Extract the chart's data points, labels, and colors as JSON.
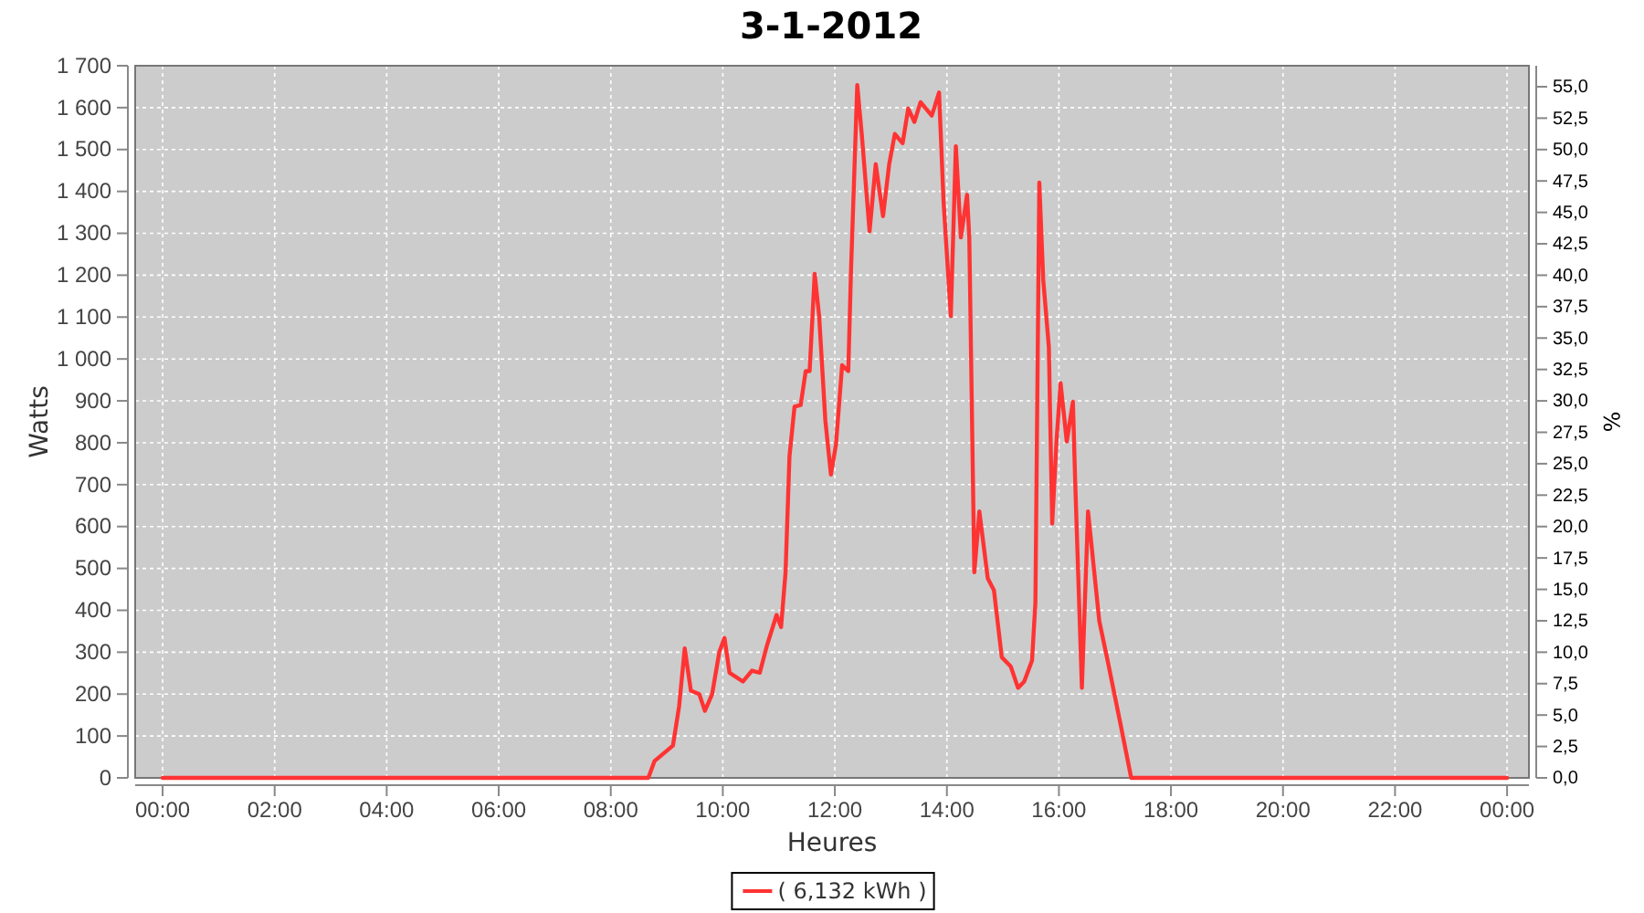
{
  "chart_data": {
    "type": "line",
    "title": "3-1-2012",
    "xlabel": "Heures",
    "ylabel": "Watts",
    "y2label": "%",
    "xlim": [
      -0.49,
      24.39
    ],
    "xticks": [
      {
        "value": 0,
        "label": "00:00"
      },
      {
        "value": 2,
        "label": "02:00"
      },
      {
        "value": 4,
        "label": "04:00"
      },
      {
        "value": 6,
        "label": "06:00"
      },
      {
        "value": 8,
        "label": "08:00"
      },
      {
        "value": 10,
        "label": "10:00"
      },
      {
        "value": 12,
        "label": "12:00"
      },
      {
        "value": 14,
        "label": "14:00"
      },
      {
        "value": 16,
        "label": "16:00"
      },
      {
        "value": 18,
        "label": "18:00"
      },
      {
        "value": 20,
        "label": "20:00"
      },
      {
        "value": 22,
        "label": "22:00"
      },
      {
        "value": 24,
        "label": "00:00"
      }
    ],
    "ylim": [
      0,
      1700
    ],
    "yticks": [
      0,
      100,
      200,
      300,
      400,
      500,
      600,
      700,
      800,
      900,
      {
        "value": 1000,
        "label": "1 000"
      },
      {
        "value": 1100,
        "label": "1 100"
      },
      {
        "value": 1200,
        "label": "1 200"
      },
      {
        "value": 1300,
        "label": "1 300"
      },
      {
        "value": 1400,
        "label": "1 400"
      },
      {
        "value": 1500,
        "label": "1 500"
      },
      {
        "value": 1600,
        "label": "1 600"
      },
      {
        "value": 1700,
        "label": "1 700"
      }
    ],
    "y2lim": [
      0,
      56.67
    ],
    "y2ticks": [
      {
        "value": 0,
        "label": "0,0"
      },
      {
        "value": 2.5,
        "label": "2,5"
      },
      {
        "value": 5,
        "label": "5,0"
      },
      {
        "value": 7.5,
        "label": "7,5"
      },
      {
        "value": 10,
        "label": "10,0"
      },
      {
        "value": 12.5,
        "label": "12,5"
      },
      {
        "value": 15,
        "label": "15,0"
      },
      {
        "value": 17.5,
        "label": "17,5"
      },
      {
        "value": 20,
        "label": "20,0"
      },
      {
        "value": 22.5,
        "label": "22,5"
      },
      {
        "value": 25,
        "label": "25,0"
      },
      {
        "value": 27.5,
        "label": "27,5"
      },
      {
        "value": 30,
        "label": "30,0"
      },
      {
        "value": 32.5,
        "label": "32,5"
      },
      {
        "value": 35,
        "label": "35,0"
      },
      {
        "value": 37.5,
        "label": "37,5"
      },
      {
        "value": 40,
        "label": "40,0"
      },
      {
        "value": 42.5,
        "label": "42,5"
      },
      {
        "value": 45,
        "label": "45,0"
      },
      {
        "value": 47.5,
        "label": "47,5"
      },
      {
        "value": 50,
        "label": "50,0"
      },
      {
        "value": 52.5,
        "label": "52,5"
      },
      {
        "value": 55,
        "label": "55,0"
      }
    ],
    "grid": true,
    "legend": "bottom",
    "marker": "none",
    "line_style": "solid",
    "series": [
      {
        "name": "( 6,132 kWh )",
        "color": "#ff3333",
        "x": [
          0,
          8.67,
          8.78,
          9.11,
          9.22,
          9.32,
          9.43,
          9.58,
          9.68,
          9.81,
          9.94,
          10.03,
          10.12,
          10.36,
          10.52,
          10.66,
          10.79,
          10.96,
          11.04,
          11.12,
          11.19,
          11.28,
          11.39,
          11.48,
          11.55,
          11.64,
          11.72,
          11.83,
          11.93,
          12.02,
          12.13,
          12.24,
          12.29,
          12.4,
          12.48,
          12.62,
          12.73,
          12.86,
          12.97,
          13.07,
          13.21,
          13.31,
          13.42,
          13.53,
          13.73,
          13.86,
          13.94,
          14.07,
          14.16,
          14.25,
          14.36,
          14.4,
          14.49,
          14.58,
          14.73,
          14.84,
          14.98,
          15.14,
          15.27,
          15.38,
          15.52,
          15.58,
          15.65,
          15.72,
          15.82,
          15.88,
          15.96,
          16.03,
          16.14,
          16.25,
          16.29,
          16.41,
          16.52,
          16.72,
          16.88,
          17.1,
          17.29,
          24
        ],
        "values": [
          0,
          0,
          40,
          77,
          171,
          309,
          208,
          200,
          160,
          200,
          302,
          334,
          251,
          230,
          256,
          251,
          317,
          389,
          360,
          491,
          767,
          886,
          890,
          971,
          971,
          1203,
          1102,
          854,
          724,
          796,
          985,
          971,
          1217,
          1654,
          1537,
          1305,
          1465,
          1341,
          1465,
          1537,
          1515,
          1598,
          1566,
          1613,
          1581,
          1636,
          1377,
          1102,
          1508,
          1290,
          1392,
          1290,
          491,
          636,
          476,
          448,
          288,
          266,
          215,
          230,
          280,
          418,
          1421,
          1189,
          1029,
          607,
          811,
          942,
          803,
          898,
          709,
          215,
          636,
          375,
          273,
          128,
          0,
          0
        ]
      }
    ]
  }
}
